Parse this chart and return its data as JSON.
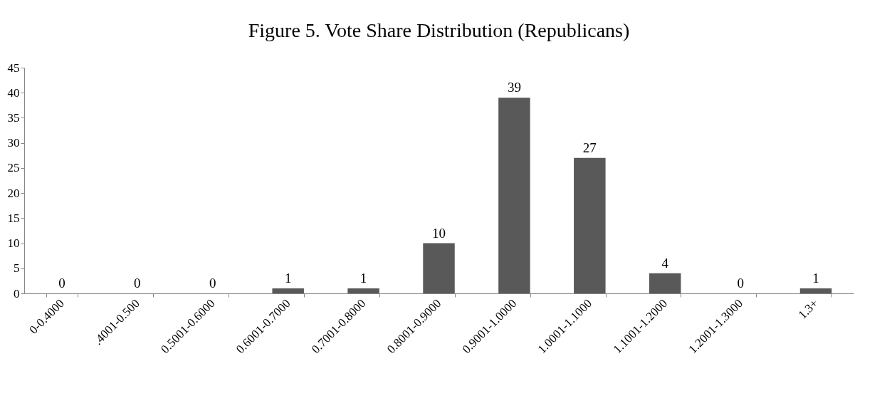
{
  "chart_data": {
    "type": "bar",
    "title": "Figure 5. Vote Share Distribution (Republicans)",
    "categories": [
      "0-0.4000",
      ".4001-0.500",
      "0.5001-0.6000",
      "0.6001-0.7000",
      "0.7001-0.8000",
      "0.8001-0.9000",
      "0.9001-1.0000",
      "1.0001-1.1000",
      "1.1001-1.2000",
      "1.2001-1.3000",
      "1.3+"
    ],
    "values": [
      0,
      0,
      0,
      1,
      1,
      10,
      39,
      27,
      4,
      0,
      1
    ],
    "color": "#595959",
    "ylim": [
      0,
      45
    ],
    "yticks": [
      0,
      5,
      10,
      15,
      20,
      25,
      30,
      35,
      40,
      45
    ],
    "data_labels": true,
    "grid": false
  }
}
